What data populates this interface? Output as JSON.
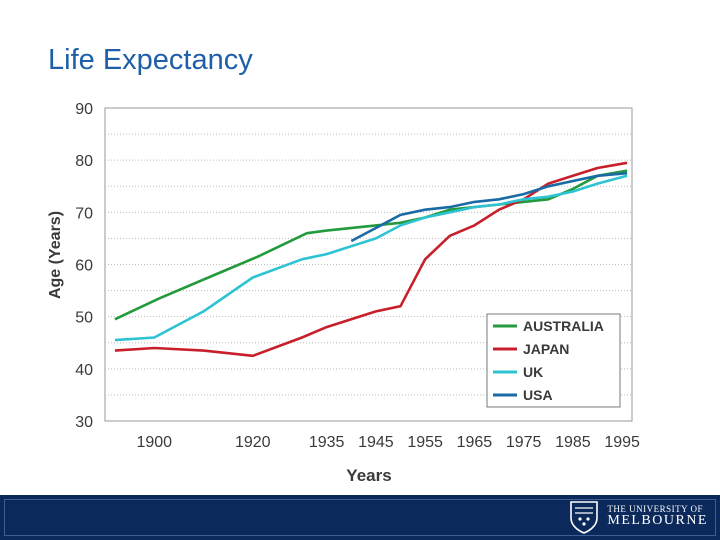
{
  "slide": {
    "title": "Life Expectancy"
  },
  "chart_data": {
    "type": "line",
    "title": "",
    "xlabel": "Years",
    "ylabel": "Age (Years)",
    "ylim": [
      30,
      90
    ],
    "xlim": [
      1890,
      1997
    ],
    "yticks": [
      30,
      40,
      50,
      60,
      70,
      80,
      90
    ],
    "xticks": [
      1900,
      1920,
      1935,
      1945,
      1955,
      1965,
      1975,
      1985,
      1995
    ],
    "grid": true,
    "legend_position": "bottom-right",
    "series": [
      {
        "name": "AUSTRALIA",
        "color": "#239a3b",
        "points": [
          [
            1892,
            49.5
          ],
          [
            1901,
            53.5
          ],
          [
            1911,
            57.5
          ],
          [
            1921,
            61.5
          ],
          [
            1931,
            66.0
          ],
          [
            1935,
            66.5
          ],
          [
            1945,
            67.5
          ],
          [
            1950,
            68.0
          ],
          [
            1955,
            69.0
          ],
          [
            1960,
            70.5
          ],
          [
            1965,
            71.0
          ],
          [
            1970,
            71.5
          ],
          [
            1975,
            72.0
          ],
          [
            1980,
            72.5
          ],
          [
            1985,
            74.5
          ],
          [
            1990,
            77.0
          ],
          [
            1996,
            78.0
          ]
        ]
      },
      {
        "name": "JAPAN",
        "color": "#c8202a",
        "points": [
          [
            1892,
            43.5
          ],
          [
            1900,
            44.0
          ],
          [
            1910,
            43.5
          ],
          [
            1920,
            42.5
          ],
          [
            1930,
            46.0
          ],
          [
            1935,
            48.0
          ],
          [
            1945,
            51.0
          ],
          [
            1950,
            52.0
          ],
          [
            1955,
            61.0
          ],
          [
            1960,
            65.5
          ],
          [
            1965,
            67.5
          ],
          [
            1970,
            70.5
          ],
          [
            1975,
            72.5
          ],
          [
            1980,
            75.5
          ],
          [
            1985,
            77.0
          ],
          [
            1990,
            78.5
          ],
          [
            1996,
            79.5
          ]
        ]
      },
      {
        "name": "UK",
        "color": "#2ec3d3",
        "points": [
          [
            1892,
            45.5
          ],
          [
            1900,
            46.0
          ],
          [
            1910,
            51.0
          ],
          [
            1920,
            57.5
          ],
          [
            1930,
            61.0
          ],
          [
            1935,
            62.0
          ],
          [
            1945,
            65.0
          ],
          [
            1950,
            67.5
          ],
          [
            1955,
            69.0
          ],
          [
            1960,
            70.0
          ],
          [
            1965,
            71.0
          ],
          [
            1970,
            71.5
          ],
          [
            1975,
            72.5
          ],
          [
            1980,
            73.0
          ],
          [
            1985,
            74.0
          ],
          [
            1990,
            75.5
          ],
          [
            1996,
            77.0
          ]
        ]
      },
      {
        "name": "USA",
        "color": "#1a6aa5",
        "points": [
          [
            1940,
            64.5
          ],
          [
            1945,
            67.0
          ],
          [
            1950,
            69.5
          ],
          [
            1955,
            70.5
          ],
          [
            1960,
            71.0
          ],
          [
            1965,
            72.0
          ],
          [
            1970,
            72.5
          ],
          [
            1975,
            73.5
          ],
          [
            1980,
            75.0
          ],
          [
            1985,
            76.0
          ],
          [
            1990,
            77.0
          ],
          [
            1996,
            77.5
          ]
        ]
      }
    ]
  },
  "footer": {
    "logo_line1": "THE UNIVERSITY OF",
    "logo_line2": "MELBOURNE"
  }
}
